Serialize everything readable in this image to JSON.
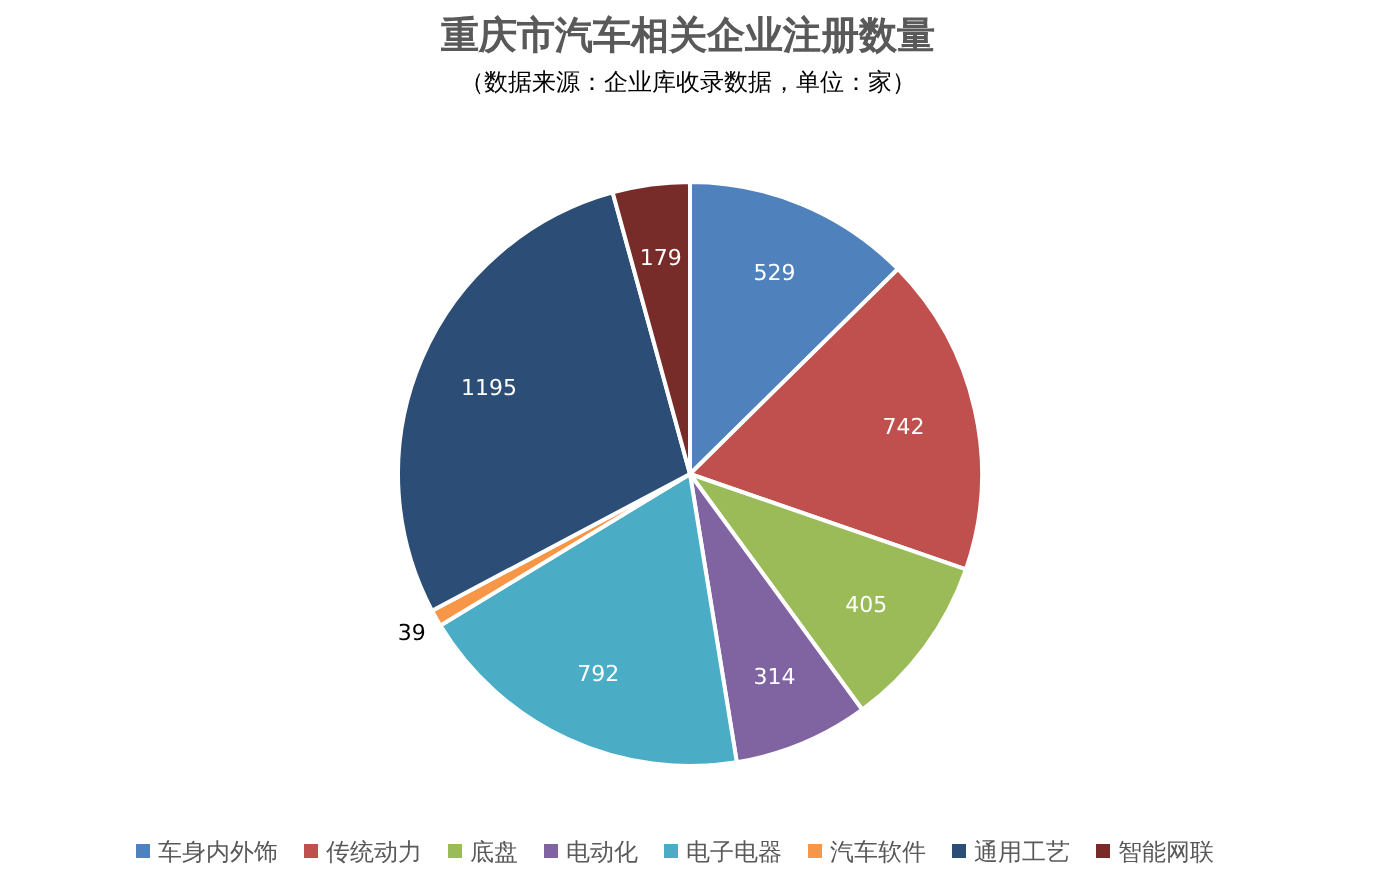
{
  "chart_data": {
    "type": "pie",
    "title": "重庆市汽车相关企业注册数量",
    "subtitle": "（数据来源：企业库收录数据，单位：家）",
    "categories": [
      "车身内外饰",
      "传统动力",
      "底盘",
      "电动化",
      "电子电器",
      "汽车软件",
      "通用工艺",
      "智能网联"
    ],
    "values": [
      529,
      742,
      405,
      314,
      792,
      39,
      1195,
      179
    ],
    "colors": [
      "#4f81bd",
      "#c0504d",
      "#9bbb59",
      "#8064a2",
      "#4bacc6",
      "#f79646",
      "#2c4d75",
      "#772c2a"
    ],
    "data_labels": true,
    "legend": "bottom"
  }
}
